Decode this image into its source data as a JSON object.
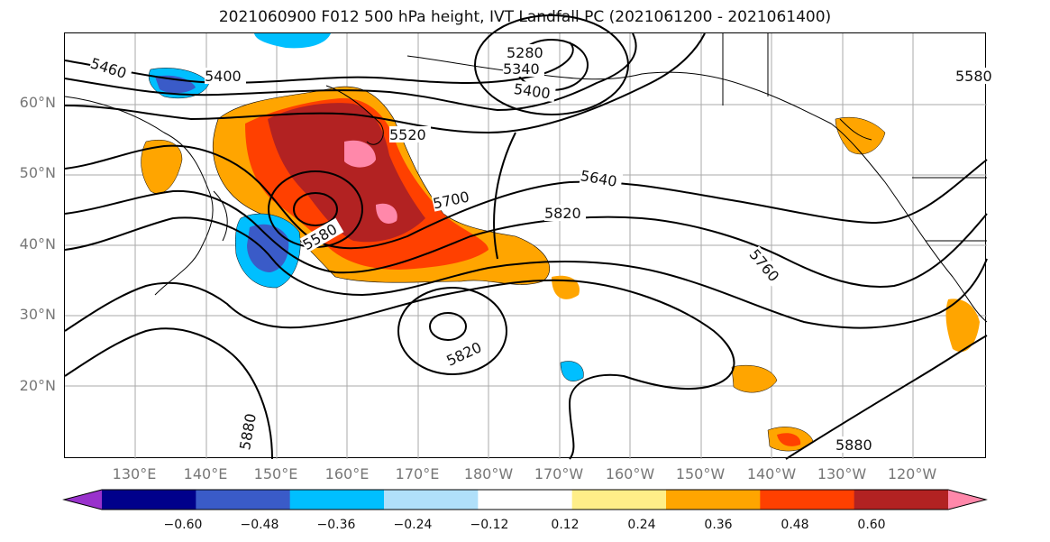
{
  "title": "2021060900 F012 500 hPa height, IVT Landfall PC (2021061200 - 2021061400)",
  "lat_labels": [
    "60°N",
    "50°N",
    "40°N",
    "30°N",
    "20°N"
  ],
  "lon_labels": [
    "130°E",
    "140°E",
    "150°E",
    "160°E",
    "170°E",
    "180°W",
    "170°W",
    "160°W",
    "150°W",
    "140°W",
    "130°W",
    "120°W"
  ],
  "colorbar": {
    "tick_labels": [
      "−0.60",
      "−0.48",
      "−0.36",
      "−0.24",
      "−0.12",
      "0.12",
      "0.24",
      "0.36",
      "0.48",
      "0.60"
    ],
    "colors": [
      "#9932cc",
      "#00008b",
      "#3a5bc8",
      "#00bfff",
      "#b0e0fa",
      "#ffffff",
      "#ffee88",
      "#ffa500",
      "#ff4000",
      "#b22222",
      "#ff88aa"
    ]
  },
  "contour_labels": [
    "5460",
    "5400",
    "5280",
    "5340",
    "5400",
    "5580",
    "5520",
    "5640",
    "5700",
    "5820",
    "5580",
    "5760",
    "5820",
    "5880",
    "5880"
  ]
}
